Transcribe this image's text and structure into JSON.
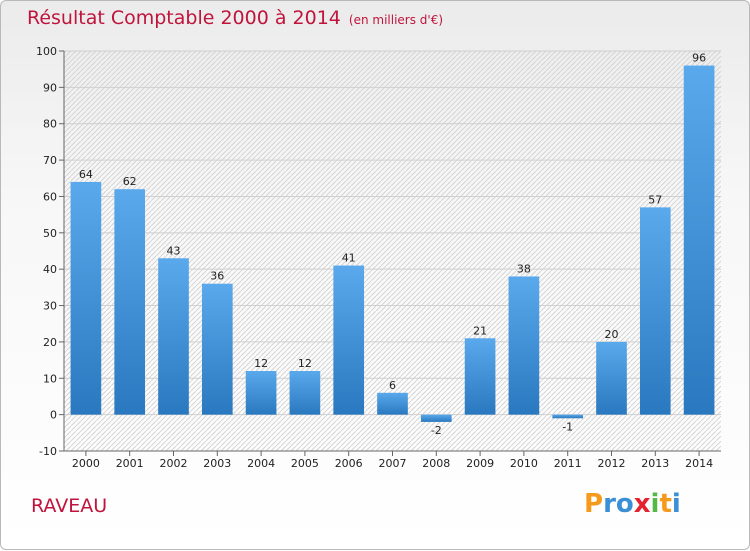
{
  "header": {
    "title": "Résultat Comptable 2000 à 2014",
    "subtitle": "(en milliers d'€)"
  },
  "footer": {
    "place": "RAVEAU",
    "logo_letters": [
      "P",
      "r",
      "o",
      "x",
      "i",
      "t",
      "i"
    ],
    "logo_colors": [
      "#f59a1b",
      "#3a8fd6",
      "#3a8fd6",
      "#e52330",
      "#56b947",
      "#f59a1b",
      "#3a8fd6"
    ]
  },
  "chart_data": {
    "type": "bar",
    "title": "Résultat Comptable 2000 à 2014",
    "categories": [
      "2000",
      "2001",
      "2002",
      "2003",
      "2004",
      "2005",
      "2006",
      "2007",
      "2008",
      "2009",
      "2010",
      "2011",
      "2012",
      "2013",
      "2014"
    ],
    "values": [
      64,
      62,
      43,
      36,
      12,
      12,
      41,
      6,
      -2,
      21,
      38,
      -1,
      20,
      57,
      96
    ],
    "ylim": [
      -10,
      100
    ],
    "yticks": [
      -10,
      0,
      10,
      20,
      30,
      40,
      50,
      60,
      70,
      80,
      90,
      100
    ],
    "grid": true,
    "bar_color": "#3b8fd9"
  }
}
